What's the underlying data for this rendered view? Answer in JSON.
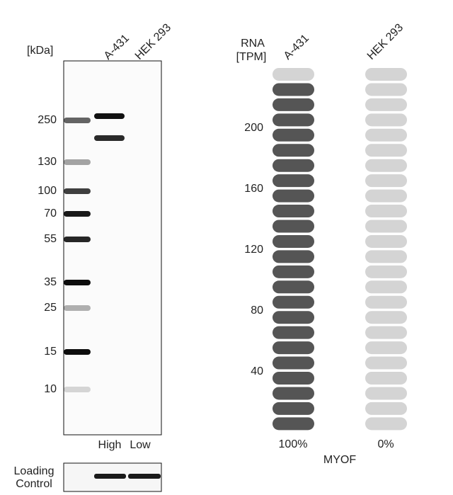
{
  "blot": {
    "unit_label": "[kDa]",
    "lanes": [
      "A-431",
      "HEK 293"
    ],
    "markers": [
      "250",
      "130",
      "100",
      "70",
      "55",
      "35",
      "25",
      "15",
      "10"
    ],
    "levels": [
      "High",
      "Low"
    ],
    "loading_control": [
      "Loading",
      "Control"
    ]
  },
  "rna": {
    "axis_label": [
      "RNA",
      "[TPM]"
    ],
    "ticks": [
      "200",
      "160",
      "120",
      "80",
      "40"
    ],
    "samples": [
      "A-431",
      "HEK 293"
    ],
    "percent_labels": [
      "100%",
      "0%"
    ],
    "gene": "MYOF",
    "filled_pills": [
      23,
      0
    ]
  }
}
